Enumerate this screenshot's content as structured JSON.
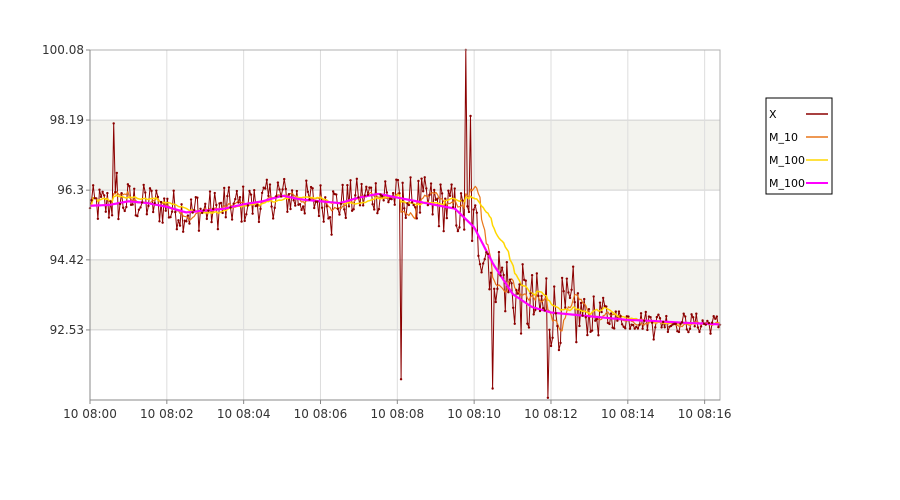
{
  "chart_data": {
    "type": "line",
    "title": "",
    "xlabel": "",
    "ylabel": "",
    "ylim": [
      90.64,
      100.08
    ],
    "yticks": [
      "100.08",
      "98.19",
      "96.3",
      "94.42",
      "92.53"
    ],
    "ytick_values": [
      100.08,
      98.19,
      96.3,
      94.42,
      92.53
    ],
    "xlim_minutes": [
      0,
      16.4
    ],
    "xticks": [
      "10 08:00",
      "10 08:02",
      "10 08:04",
      "10 08:06",
      "10 08:08",
      "10 08:10",
      "10 08:12",
      "10 08:14",
      "10 08:16"
    ],
    "xtick_minutes": [
      0,
      2,
      4,
      6,
      8,
      10,
      12,
      14,
      16
    ],
    "grid": true,
    "legend_position": "right",
    "series": [
      {
        "name": "X",
        "color": "#8b0000"
      },
      {
        "name": "M_10",
        "color": "#e8761a"
      },
      {
        "name": "M_100",
        "color": "#ffd700"
      },
      {
        "name": "M_100",
        "color": "#ff00ff"
      }
    ],
    "smooth_trend": {
      "x_minutes": [
        0,
        0.5,
        1,
        1.5,
        2,
        2.5,
        3,
        3.5,
        4,
        4.5,
        5,
        5.5,
        6,
        6.5,
        7,
        7.5,
        8,
        8.5,
        9,
        9.5,
        10,
        10.5,
        11,
        11.5,
        12,
        12.5,
        13,
        13.5,
        14,
        14.5,
        15,
        15.5,
        16,
        16.4
      ],
      "y": [
        95.88,
        95.9,
        96.0,
        95.95,
        95.85,
        95.7,
        95.75,
        95.8,
        95.92,
        96.0,
        96.15,
        96.05,
        96.0,
        95.95,
        96.1,
        96.2,
        96.1,
        96.0,
        95.9,
        95.8,
        95.3,
        94.3,
        93.5,
        93.15,
        93.0,
        92.95,
        92.9,
        92.85,
        92.8,
        92.78,
        92.75,
        92.72,
        92.7,
        92.68
      ]
    }
  }
}
